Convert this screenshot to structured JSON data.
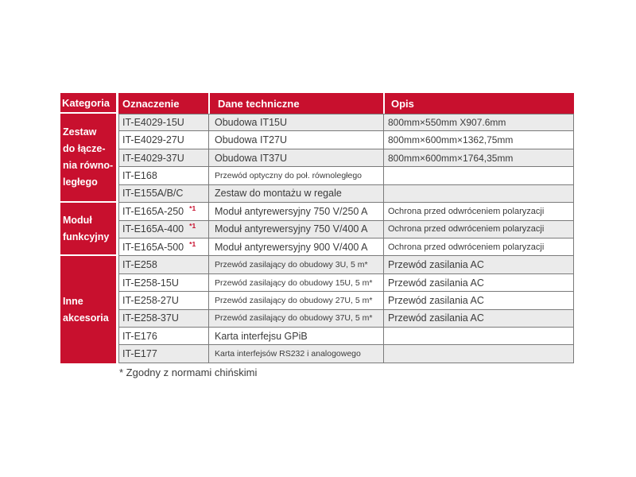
{
  "table": {
    "headers": [
      "Kategoria",
      "Oznaczenie",
      "Dane techniczne",
      "Opis"
    ],
    "categories": [
      {
        "label": "Zestaw\ndo łącze-\nnia równo-\nległego",
        "rows_spanned": 5
      },
      {
        "label": "Moduł\nfunkcyjny",
        "rows_spanned": 3
      },
      {
        "label": "Inne\nakcesoria",
        "rows_spanned": 6
      }
    ],
    "rows": [
      {
        "code": "IT-E4029-15U",
        "sup": "",
        "tech": "Obudowa IT15U",
        "opis": "800mm×550mm X907.6mm"
      },
      {
        "code": "IT-E4029-27U",
        "sup": "",
        "tech": "Obudowa IT27U",
        "opis": "800mm×600mm×1362,75mm"
      },
      {
        "code": "IT-E4029-37U",
        "sup": "",
        "tech": "Obudowa IT37U",
        "opis": "800mm×600mm×1764,35mm"
      },
      {
        "code": "IT-E168",
        "sup": "",
        "tech": "Przewód optyczny do poł. równoległego",
        "opis": ""
      },
      {
        "code": "IT-E155A/B/C",
        "sup": "",
        "tech": "Zestaw do montażu w regale",
        "opis": ""
      },
      {
        "code": "IT-E165A-250",
        "sup": "*1",
        "tech": "Moduł antyrewersyjny 750 V/250 A",
        "opis": "Ochrona przed odwróceniem polaryzacji"
      },
      {
        "code": "IT-E165A-400",
        "sup": "*1",
        "tech": "Moduł antyrewersyjny 750 V/400 A",
        "opis": "Ochrona przed odwróceniem polaryzacji"
      },
      {
        "code": "IT-E165A-500",
        "sup": "*1",
        "tech": "Moduł antyrewersyjny 900 V/400 A",
        "opis": "Ochrona przed odwróceniem polaryzacji"
      },
      {
        "code": "IT-E258",
        "sup": "",
        "tech": "Przewód zasilający do obudowy 3U, 5 m*",
        "opis": "Przewód zasilania AC"
      },
      {
        "code": "IT-E258-15U",
        "sup": "",
        "tech": "Przewód zasilający do obudowy 15U, 5 m*",
        "opis": "Przewód zasilania AC"
      },
      {
        "code": "IT-E258-27U",
        "sup": "",
        "tech": "Przewód zasilający do obudowy 27U, 5 m*",
        "opis": "Przewód zasilania AC"
      },
      {
        "code": "IT-E258-37U",
        "sup": "",
        "tech": "Przewód zasilający do obudowy 37U, 5 m*",
        "opis": "Przewód zasilania AC"
      },
      {
        "code": "IT-E176",
        "sup": "",
        "tech": "Karta interfejsu GPiB",
        "opis": ""
      },
      {
        "code": "IT-E177",
        "sup": "",
        "tech": "Karta interfejsów RS232 i analogowego",
        "opis": ""
      }
    ],
    "colors": {
      "header_red": "#c8102e",
      "row_alt": "#ebebeb",
      "border": "#7a7a7a",
      "text": "#3b3b3b"
    }
  },
  "footnote": "* Zgodny z normami chińskimi"
}
